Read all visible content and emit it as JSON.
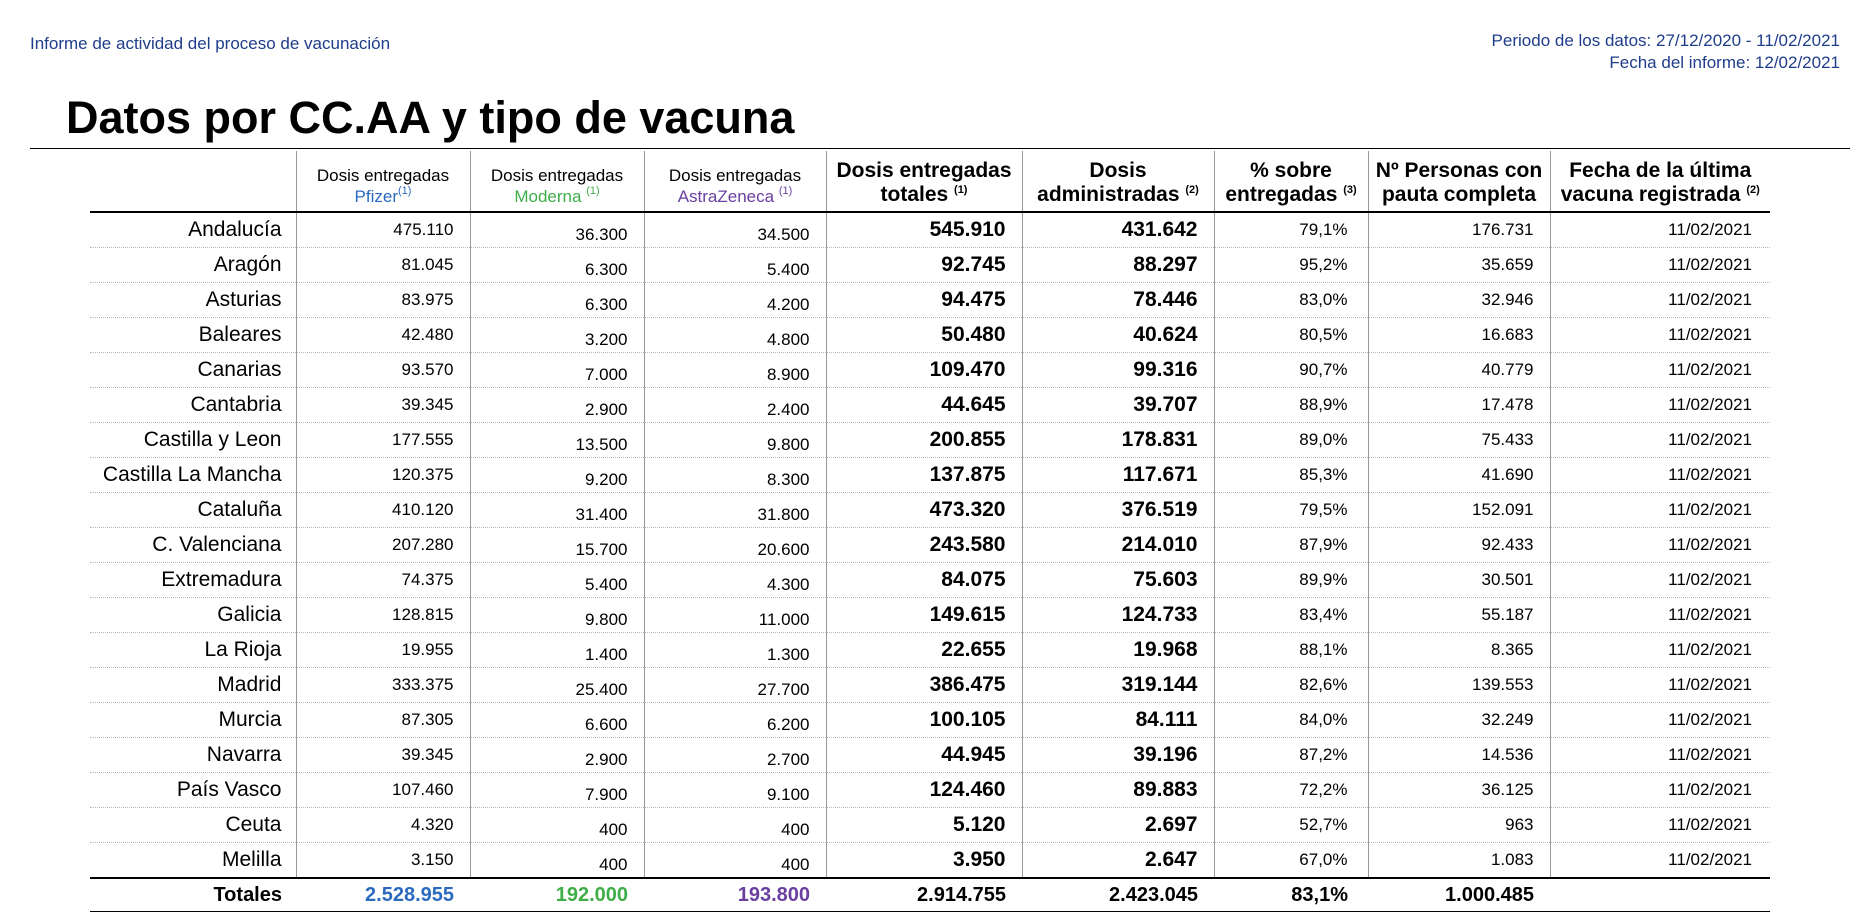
{
  "header": {
    "report_name": "Informe de actividad del proceso de vacunación",
    "period": "Periodo de los datos: 27/12/2020 - 11/02/2021",
    "report_date": "Fecha del informe: 12/02/2021"
  },
  "title": "Datos por CC.AA y tipo de vacuna",
  "columns": {
    "pfizer": {
      "line1": "Dosis entregadas",
      "line2": "Pfizer",
      "note": "(1)"
    },
    "moderna": {
      "line1": "Dosis entregadas",
      "line2": "Moderna",
      "note": "(1)"
    },
    "astrazeneca": {
      "line1": "Dosis entregadas",
      "line2": "AstraZeneca",
      "note": "(1)"
    },
    "totales": {
      "line1": "Dosis entregadas",
      "line2": "totales",
      "note": "(1)"
    },
    "administradas": {
      "line1": "Dosis",
      "line2": "administradas",
      "note": "(2)"
    },
    "porcentaje": {
      "line1": "% sobre",
      "line2": "entregadas",
      "note": "(3)"
    },
    "personas": {
      "line1": "Nº Personas con",
      "line2": "pauta completa",
      "note": ""
    },
    "fecha": {
      "line1": "Fecha de la última",
      "line2": "vacuna registrada",
      "note": "(2)"
    }
  },
  "colors": {
    "pfizer": "#2a6bbf",
    "moderna": "#3fae49",
    "astrazeneca": "#6a3fa0"
  },
  "rows": [
    [
      "Andalucía",
      "475.110",
      "36.300",
      "34.500",
      "545.910",
      "431.642",
      "79,1%",
      "176.731",
      "11/02/2021"
    ],
    [
      "Aragón",
      "81.045",
      "6.300",
      "5.400",
      "92.745",
      "88.297",
      "95,2%",
      "35.659",
      "11/02/2021"
    ],
    [
      "Asturias",
      "83.975",
      "6.300",
      "4.200",
      "94.475",
      "78.446",
      "83,0%",
      "32.946",
      "11/02/2021"
    ],
    [
      "Baleares",
      "42.480",
      "3.200",
      "4.800",
      "50.480",
      "40.624",
      "80,5%",
      "16.683",
      "11/02/2021"
    ],
    [
      "Canarias",
      "93.570",
      "7.000",
      "8.900",
      "109.470",
      "99.316",
      "90,7%",
      "40.779",
      "11/02/2021"
    ],
    [
      "Cantabria",
      "39.345",
      "2.900",
      "2.400",
      "44.645",
      "39.707",
      "88,9%",
      "17.478",
      "11/02/2021"
    ],
    [
      "Castilla y Leon",
      "177.555",
      "13.500",
      "9.800",
      "200.855",
      "178.831",
      "89,0%",
      "75.433",
      "11/02/2021"
    ],
    [
      "Castilla La Mancha",
      "120.375",
      "9.200",
      "8.300",
      "137.875",
      "117.671",
      "85,3%",
      "41.690",
      "11/02/2021"
    ],
    [
      "Cataluña",
      "410.120",
      "31.400",
      "31.800",
      "473.320",
      "376.519",
      "79,5%",
      "152.091",
      "11/02/2021"
    ],
    [
      "C. Valenciana",
      "207.280",
      "15.700",
      "20.600",
      "243.580",
      "214.010",
      "87,9%",
      "92.433",
      "11/02/2021"
    ],
    [
      "Extremadura",
      "74.375",
      "5.400",
      "4.300",
      "84.075",
      "75.603",
      "89,9%",
      "30.501",
      "11/02/2021"
    ],
    [
      "Galicia",
      "128.815",
      "9.800",
      "11.000",
      "149.615",
      "124.733",
      "83,4%",
      "55.187",
      "11/02/2021"
    ],
    [
      "La Rioja",
      "19.955",
      "1.400",
      "1.300",
      "22.655",
      "19.968",
      "88,1%",
      "8.365",
      "11/02/2021"
    ],
    [
      "Madrid",
      "333.375",
      "25.400",
      "27.700",
      "386.475",
      "319.144",
      "82,6%",
      "139.553",
      "11/02/2021"
    ],
    [
      "Murcia",
      "87.305",
      "6.600",
      "6.200",
      "100.105",
      "84.111",
      "84,0%",
      "32.249",
      "11/02/2021"
    ],
    [
      "Navarra",
      "39.345",
      "2.900",
      "2.700",
      "44.945",
      "39.196",
      "87,2%",
      "14.536",
      "11/02/2021"
    ],
    [
      "País Vasco",
      "107.460",
      "7.900",
      "9.100",
      "124.460",
      "89.883",
      "72,2%",
      "36.125",
      "11/02/2021"
    ],
    [
      "Ceuta",
      "4.320",
      "400",
      "400",
      "5.120",
      "2.697",
      "52,7%",
      "963",
      "11/02/2021"
    ],
    [
      "Melilla",
      "3.150",
      "400",
      "400",
      "3.950",
      "2.647",
      "67,0%",
      "1.083",
      "11/02/2021"
    ]
  ],
  "totals": {
    "label": "Totales",
    "pfizer": "2.528.955",
    "moderna": "192.000",
    "astrazeneca": "193.800",
    "totales": "2.914.755",
    "administradas": "2.423.045",
    "porcentaje": "83,1%",
    "personas": "1.000.485"
  }
}
